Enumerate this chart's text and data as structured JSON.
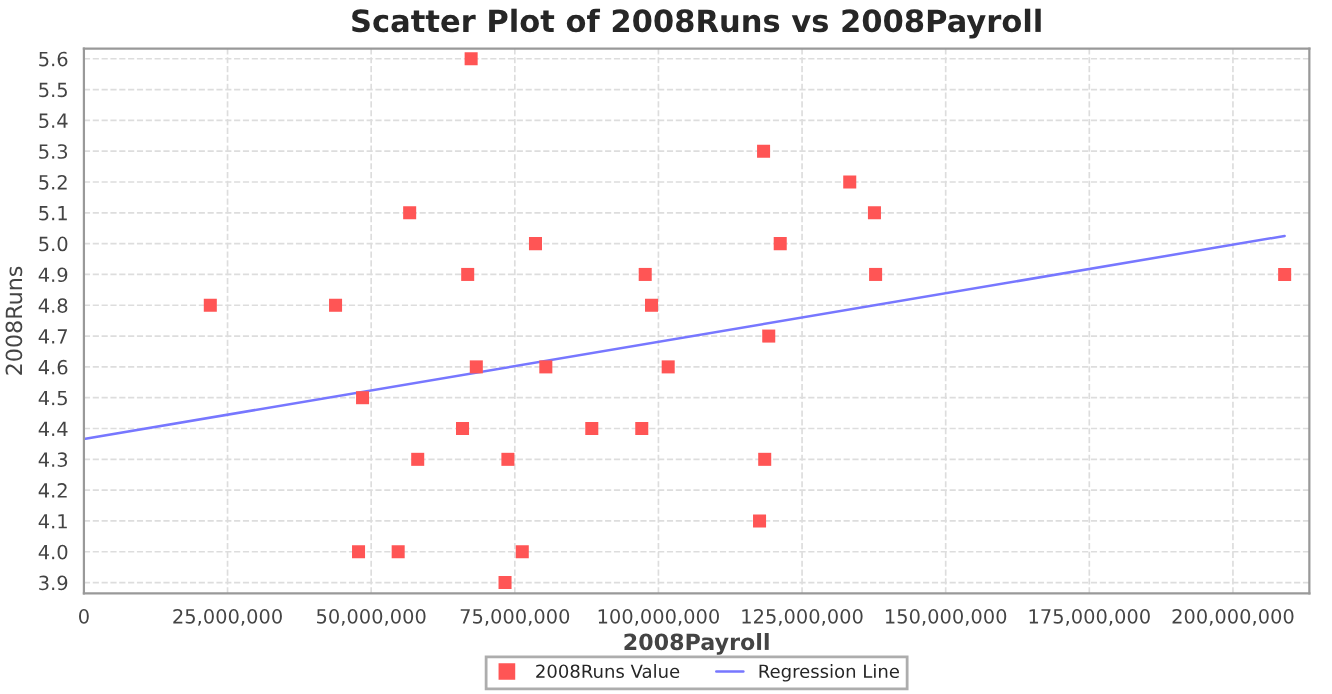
{
  "chart_data": {
    "type": "scatter",
    "title": "Scatter Plot of 2008Runs vs 2008Payroll",
    "xlabel": "2008Payroll",
    "ylabel": "2008Runs",
    "series": [
      {
        "name": "2008Runs Value",
        "color": "#ff5555",
        "marker": "square",
        "x": [
          67400000,
          56700000,
          78600000,
          66800000,
          97700000,
          22000000,
          43800000,
          98800000,
          68300000,
          80400000,
          101700000,
          48500000,
          65900000,
          88400000,
          97100000,
          58100000,
          73800000,
          47800000,
          54700000,
          76300000,
          73300000,
          118300000,
          133300000,
          137600000,
          121200000,
          137800000,
          209000000,
          119200000,
          118500000,
          117600000
        ],
        "values": [
          5.6,
          5.1,
          5.0,
          4.9,
          4.9,
          4.8,
          4.8,
          4.8,
          4.6,
          4.6,
          4.6,
          4.5,
          4.4,
          4.4,
          4.4,
          4.3,
          4.3,
          4.0,
          4.0,
          4.0,
          3.9,
          5.3,
          5.2,
          5.1,
          5.0,
          4.9,
          4.9,
          4.7,
          4.3,
          4.1
        ]
      },
      {
        "name": "Regression Line",
        "type": "line",
        "color": "#7777ff",
        "x": [
          0,
          209000000
        ],
        "values": [
          4.366,
          5.025
        ]
      }
    ],
    "xlim": [
      0,
      213300000
    ],
    "ylim": [
      3.865,
      5.633
    ],
    "xticks": [
      {
        "value": 0,
        "label": "0"
      },
      {
        "value": 25000000,
        "label": "25,000,000"
      },
      {
        "value": 50000000,
        "label": "50,000,000"
      },
      {
        "value": 75000000,
        "label": "75,000,000"
      },
      {
        "value": 100000000,
        "label": "100,000,000"
      },
      {
        "value": 125000000,
        "label": "125,000,000"
      },
      {
        "value": 150000000,
        "label": "150,000,000"
      },
      {
        "value": 175000000,
        "label": "175,000,000"
      },
      {
        "value": 200000000,
        "label": "200,000,000"
      }
    ],
    "yticks": [
      3.9,
      {
        "value": 4.0,
        "label": "4.0"
      },
      4.1,
      4.2,
      4.3,
      4.4,
      4.5,
      4.6,
      4.7,
      4.8,
      4.9,
      {
        "value": 5.0,
        "label": "5.0"
      },
      5.1,
      5.2,
      5.3,
      5.4,
      5.5,
      5.6
    ],
    "grid": true,
    "legend": "bottom"
  }
}
